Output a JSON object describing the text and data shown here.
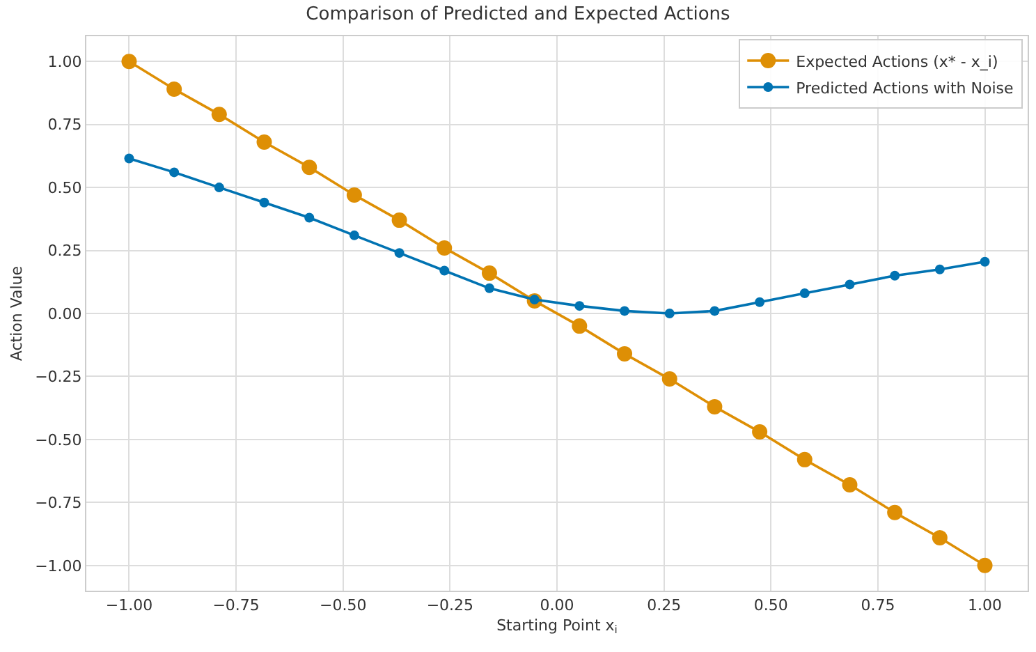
{
  "chart_data": {
    "type": "line",
    "title": "Comparison of Predicted and Expected Actions",
    "xlabel": "Starting Point x$_{i}$",
    "ylabel": "Action Value",
    "x": [
      -1.0,
      -0.8947,
      -0.7895,
      -0.6842,
      -0.5789,
      -0.4737,
      -0.3684,
      -0.2632,
      -0.1579,
      -0.0526,
      0.0526,
      0.1579,
      0.2632,
      0.3684,
      0.4737,
      0.5789,
      0.6842,
      0.7895,
      0.8947,
      1.0
    ],
    "series": [
      {
        "name": "Expected Actions (x* - x_i)",
        "color": "#de8f05",
        "values": [
          1.0,
          0.89,
          0.79,
          0.68,
          0.58,
          0.47,
          0.37,
          0.26,
          0.16,
          0.05,
          -0.05,
          -0.16,
          -0.26,
          -0.37,
          -0.47,
          -0.58,
          -0.68,
          -0.79,
          -0.89,
          -1.0
        ]
      },
      {
        "name": "Predicted Actions with Noise",
        "color": "#0173b2",
        "values": [
          0.615,
          0.56,
          0.5,
          0.44,
          0.38,
          0.31,
          0.24,
          0.17,
          0.1,
          0.055,
          0.03,
          0.01,
          0.0,
          0.01,
          0.045,
          0.08,
          0.115,
          0.15,
          0.175,
          0.205
        ]
      }
    ],
    "xlim": [
      -1.1,
      1.1
    ],
    "ylim": [
      -1.1,
      1.1
    ],
    "xticks": [
      {
        "value": -1.0,
        "label": "−1.00"
      },
      {
        "value": -0.75,
        "label": "−0.75"
      },
      {
        "value": -0.5,
        "label": "−0.50"
      },
      {
        "value": -0.25,
        "label": "−0.25"
      },
      {
        "value": 0.0,
        "label": "0.00"
      },
      {
        "value": 0.25,
        "label": "0.25"
      },
      {
        "value": 0.5,
        "label": "0.50"
      },
      {
        "value": 0.75,
        "label": "0.75"
      },
      {
        "value": 1.0,
        "label": "1.00"
      }
    ],
    "yticks": [
      {
        "value": -1.0,
        "label": "−1.00"
      },
      {
        "value": -0.75,
        "label": "−0.75"
      },
      {
        "value": -0.5,
        "label": "−0.50"
      },
      {
        "value": -0.25,
        "label": "−0.25"
      },
      {
        "value": 0.0,
        "label": "0.00"
      },
      {
        "value": 0.25,
        "label": "0.25"
      },
      {
        "value": 0.5,
        "label": "0.50"
      },
      {
        "value": 0.75,
        "label": "0.75"
      },
      {
        "value": 1.0,
        "label": "1.00"
      }
    ],
    "grid": true,
    "legend": "top right",
    "marker": "circle",
    "line_style": "solid"
  }
}
